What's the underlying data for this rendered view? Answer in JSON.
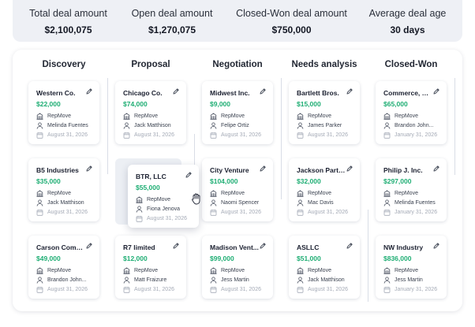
{
  "stats": [
    {
      "label": "Total deal amount",
      "value": "$2,100,075"
    },
    {
      "label": "Open deal amount",
      "value": "$1,270,075"
    },
    {
      "label": "Closed-Won deal amount",
      "value": "$750,000"
    },
    {
      "label": "Average deal age",
      "value": "30 days"
    }
  ],
  "columns": [
    {
      "title": "Discovery"
    },
    {
      "title": "Proposal"
    },
    {
      "title": "Negotiation"
    },
    {
      "title": "Needs analysis"
    },
    {
      "title": "Closed-Won"
    }
  ],
  "cards": {
    "discovery": [
      {
        "name": "Western Co.",
        "amount": "$22,000",
        "company": "RepMove",
        "owner": "Melinda Fuentes",
        "date": "August 31, 2026"
      },
      {
        "name": "B5 Industries",
        "amount": "$35,000",
        "company": "RepMove",
        "owner": "Jack Matthison",
        "date": "August 31, 2026"
      },
      {
        "name": "Carson Company",
        "amount": "$49,000",
        "company": "RepMove",
        "owner": "Brandon John...",
        "date": "August 31, 2026"
      }
    ],
    "proposal": [
      {
        "name": "Chicago Co.",
        "amount": "$74,000",
        "company": "RepMove",
        "owner": "Jack Matthison",
        "date": "August 31, 2026"
      },
      {
        "name": "BTR, LLC",
        "amount": "$55,000",
        "company": "RepMove",
        "owner": "Fiona Jenova",
        "date": "August 31, 2026"
      },
      {
        "name": "R7 limited",
        "amount": "$12,000",
        "company": "RepMove",
        "owner": "Matt Fraizure",
        "date": "August 31, 2026"
      }
    ],
    "negotiation": [
      {
        "name": "Midwest Inc.",
        "amount": "$9,000",
        "company": "RepMove",
        "owner": "Felipe Ortiz",
        "date": "August 31, 2026"
      },
      {
        "name": "City Venture",
        "amount": "$104,000",
        "company": "RepMove",
        "owner": "Naomi Spencer",
        "date": "August 31, 2026"
      },
      {
        "name": "Madison Vent...",
        "amount": "$99,000",
        "company": "RepMove",
        "owner": "Jess Martin",
        "date": "August 31, 2026"
      }
    ],
    "needs_analysis": [
      {
        "name": "Bartlett Bros.",
        "amount": "$15,000",
        "company": "RepMove",
        "owner": "James Parker",
        "date": "August 31, 2026"
      },
      {
        "name": "Jackson Partn...",
        "amount": "$32,000",
        "company": "RepMove",
        "owner": "Mac Davis",
        "date": "August 31, 2026"
      },
      {
        "name": "ASLLC",
        "amount": "$51,000",
        "company": "RepMove",
        "owner": "Jack Matthison",
        "date": "August 31, 2026"
      }
    ],
    "closed_won": [
      {
        "name": "Commerce, LLC",
        "amount": "$65,000",
        "company": "RepMove",
        "owner": "Brandon John...",
        "date": "January 31, 2026"
      },
      {
        "name": "Philip J. Inc.",
        "amount": "$297,000",
        "company": "RepMove",
        "owner": "Melinda Fuentes",
        "date": "January 31, 2026"
      },
      {
        "name": "NW Industry",
        "amount": "$836,000",
        "company": "RepMove",
        "owner": "Jess Martin",
        "date": "January 31, 2026"
      }
    ]
  },
  "colors": {
    "amount": "#1fae74",
    "panel": "#eef0f5"
  },
  "icons": {
    "edit": "pencil-icon",
    "company": "building-icon",
    "owner": "person-icon",
    "date": "calendar-icon",
    "cursor": "grab-hand-cursor-icon"
  }
}
